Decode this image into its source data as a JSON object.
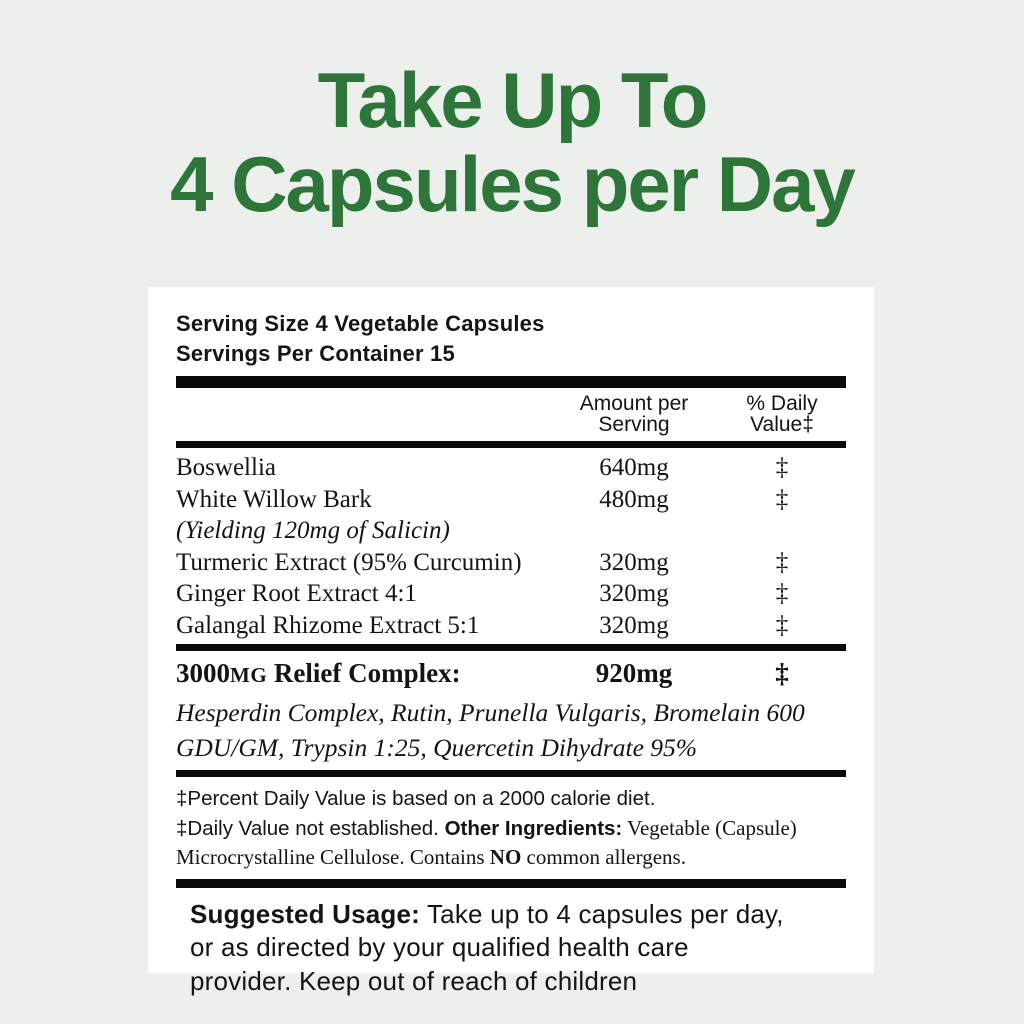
{
  "colors": {
    "background": "#edefed",
    "panel": "#ffffff",
    "heading_green": "#2d7539",
    "bar_black": "#0a0a0a"
  },
  "heading": {
    "line1": "Take Up To",
    "line2": "4 Capsules per Day"
  },
  "supplement_panel": {
    "serving_size": "Serving Size 4 Vegetable Capsules",
    "servings_per_container": "Servings Per Container 15",
    "columns": {
      "amount_line1": "Amount per",
      "amount_line2": "Serving",
      "dv_line1": "% Daily",
      "dv_line2": "Value‡"
    },
    "rows": [
      {
        "name": "Boswellia",
        "amount": "640mg",
        "dv": "‡"
      },
      {
        "name": "White Willow Bark",
        "amount": "480mg",
        "dv": "‡"
      },
      {
        "name": "(Yielding 120mg of Salicin)",
        "amount": "",
        "dv": ""
      },
      {
        "name": "Turmeric Extract (95% Curcumin)",
        "amount": "320mg",
        "dv": "‡"
      },
      {
        "name": "Ginger Root Extract 4:1",
        "amount": "320mg",
        "dv": "‡"
      },
      {
        "name": "Galangal Rhizome Extract 5:1",
        "amount": "320mg",
        "dv": "‡"
      }
    ],
    "complex": {
      "title_number": "3000",
      "title_unit": "MG",
      "title_rest": " Relief Complex:",
      "amount": "920mg",
      "dv": "‡",
      "ingredients": "Hesperdin Complex, Rutin, Prunella Vulgaris, Bromelain 600 GDU/GM, Trypsin 1:25, Quercetin Dihydrate 95%"
    },
    "footnotes": {
      "percent_dv": "‡Percent Daily Value is based on a 2000 calorie diet.",
      "dv_not_established": "‡Daily Value not established. ",
      "other_ingredients_label": "Other Ingredients:",
      "other_ingredients_value": " Vegetable (Capsule)",
      "line3_pre": "Microcrystalline Cellulose. Contains ",
      "line3_no": "NO",
      "line3_post": " common allergens."
    },
    "suggested_usage": {
      "label": "Suggested Usage:",
      "text": " Take up to 4 capsules per day, or as directed by your qualified health care provider. Keep out of reach of children"
    }
  }
}
